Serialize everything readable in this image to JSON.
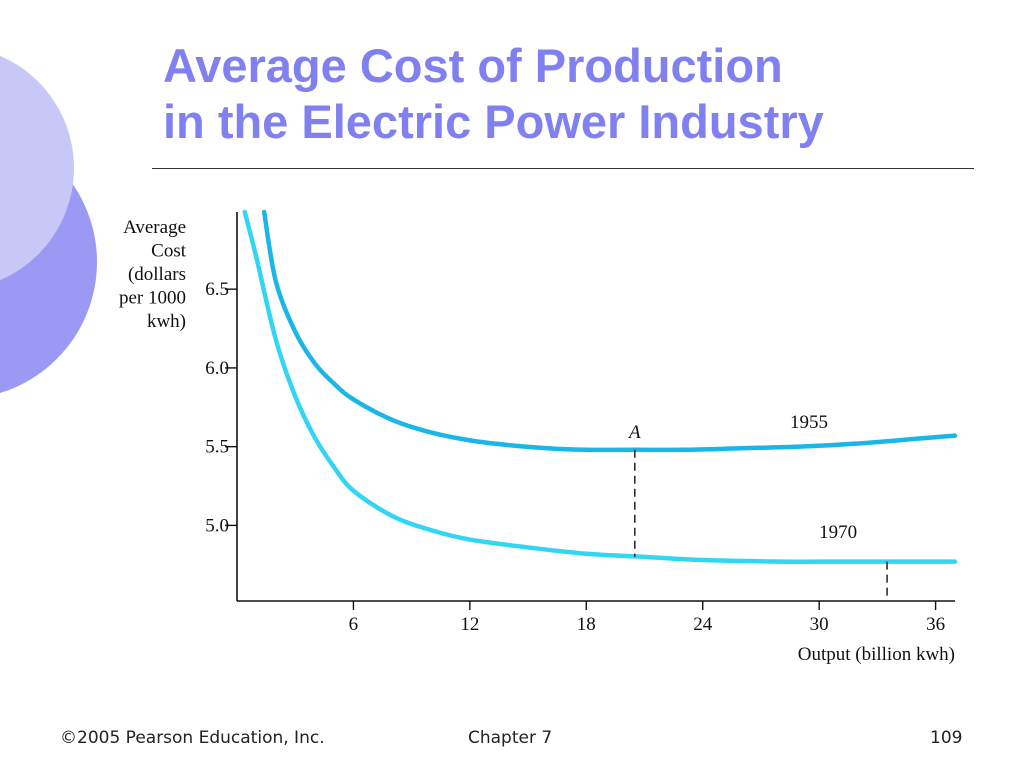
{
  "slide": {
    "title_line1": "Average Cost of Production",
    "title_line2": "in the Electric Power Industry",
    "footer_copyright": "©2005 Pearson Education, Inc.",
    "footer_chapter": "Chapter 7",
    "footer_page": "109"
  },
  "colors": {
    "title": "#8080f0",
    "curve_1955": "#1ab6e8",
    "curve_1970": "#33d6f2",
    "deco_light": "#c8c8f8",
    "deco_dark": "#9a9af5"
  },
  "chart_data": {
    "type": "line",
    "title": "",
    "ylabel_lines": [
      "Average",
      "Cost",
      "(dollars",
      "per 1000",
      "kwh)"
    ],
    "xlabel": "Output (billion kwh)",
    "xlim": [
      0,
      37
    ],
    "ylim": [
      4.52,
      6.99
    ],
    "x_ticks": [
      6,
      12,
      18,
      24,
      30,
      36
    ],
    "x_tick_labels": [
      "6",
      "12",
      "18",
      "24",
      "30",
      "36"
    ],
    "y_ticks": [
      5.0,
      5.5,
      6.0,
      6.5
    ],
    "y_tick_labels": [
      "5.0",
      "5.5",
      "6.0",
      "6.5"
    ],
    "series": [
      {
        "name": "1955",
        "label": "1955",
        "x": [
          1.4,
          2,
          3,
          4,
          5,
          6,
          8,
          10,
          12,
          14,
          16,
          18,
          20.5,
          23,
          26,
          29,
          32,
          35,
          37
        ],
        "y": [
          6.99,
          6.55,
          6.23,
          6.03,
          5.9,
          5.8,
          5.67,
          5.59,
          5.54,
          5.51,
          5.49,
          5.48,
          5.48,
          5.48,
          5.49,
          5.5,
          5.52,
          5.55,
          5.57
        ],
        "label_at": {
          "x": 28.5,
          "y": 5.62
        }
      },
      {
        "name": "1970",
        "label": "1970",
        "x": [
          0.4,
          1,
          2,
          3,
          4,
          5,
          6,
          8,
          10,
          12,
          15,
          18,
          21,
          24,
          28,
          30,
          33.5,
          37
        ],
        "y": [
          6.99,
          6.7,
          6.18,
          5.82,
          5.56,
          5.37,
          5.22,
          5.06,
          4.97,
          4.91,
          4.86,
          4.82,
          4.8,
          4.78,
          4.77,
          4.77,
          4.77,
          4.77
        ],
        "label_at": {
          "x": 30,
          "y": 4.92
        }
      }
    ],
    "annotations": [
      {
        "label": "A",
        "x": 20.5,
        "y_top": 5.48,
        "y_bottom": 4.8,
        "italic": true
      },
      {
        "label": "",
        "x": 33.5,
        "y_top": 4.77,
        "y_bottom": 4.52,
        "italic": false
      }
    ]
  }
}
